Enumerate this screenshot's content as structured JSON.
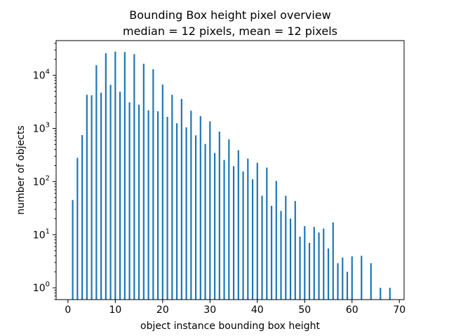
{
  "chart_data": {
    "type": "bar",
    "title_line1": "Bounding Box height pixel overview",
    "title_line2": "median = 12 pixels, mean = 12 pixels",
    "xlabel": "object instance bounding box height",
    "ylabel": "number of objects",
    "xlim": [
      -2.5,
      71
    ],
    "ylim": [
      0.6,
      45000
    ],
    "yscale": "log",
    "grid": false,
    "bar_color": "#1f77b4",
    "x_ticks": [
      0,
      10,
      20,
      30,
      40,
      50,
      60,
      70
    ],
    "x_tick_labels": [
      "0",
      "10",
      "20",
      "30",
      "40",
      "50",
      "60",
      "70"
    ],
    "y_ticks": [
      1,
      10,
      100,
      1000,
      10000
    ],
    "y_tick_labels": [
      {
        "base": "10",
        "exp": "0"
      },
      {
        "base": "10",
        "exp": "1"
      },
      {
        "base": "10",
        "exp": "2"
      },
      {
        "base": "10",
        "exp": "3"
      },
      {
        "base": "10",
        "exp": "4"
      }
    ],
    "x": [
      1,
      2,
      3,
      4,
      5,
      6,
      7,
      8,
      9,
      10,
      11,
      12,
      13,
      14,
      15,
      16,
      17,
      18,
      19,
      20,
      21,
      22,
      23,
      24,
      25,
      26,
      27,
      28,
      29,
      30,
      31,
      32,
      33,
      34,
      35,
      36,
      37,
      38,
      39,
      40,
      41,
      42,
      43,
      44,
      45,
      46,
      47,
      48,
      49,
      50,
      51,
      52,
      53,
      54,
      55,
      56,
      57,
      58,
      59,
      60,
      61,
      62,
      63,
      64,
      65,
      66,
      67,
      68
    ],
    "values": [
      45,
      280,
      750,
      4300,
      4200,
      15500,
      4700,
      26000,
      6600,
      28000,
      4900,
      27500,
      3100,
      25000,
      2800,
      16500,
      2200,
      13000,
      2100,
      6700,
      1650,
      4300,
      1250,
      3600,
      1050,
      2150,
      740,
      1700,
      510,
      1360,
      345,
      870,
      255,
      620,
      195,
      390,
      155,
      270,
      110,
      225,
      54,
      183,
      35,
      103,
      28,
      54,
      20,
      43,
      9.2,
      14.5,
      7,
      14,
      11,
      13,
      5.5,
      17,
      2.9,
      3.7,
      2,
      3.9,
      0,
      4,
      0,
      2.9,
      0,
      1,
      0,
      1
    ]
  }
}
